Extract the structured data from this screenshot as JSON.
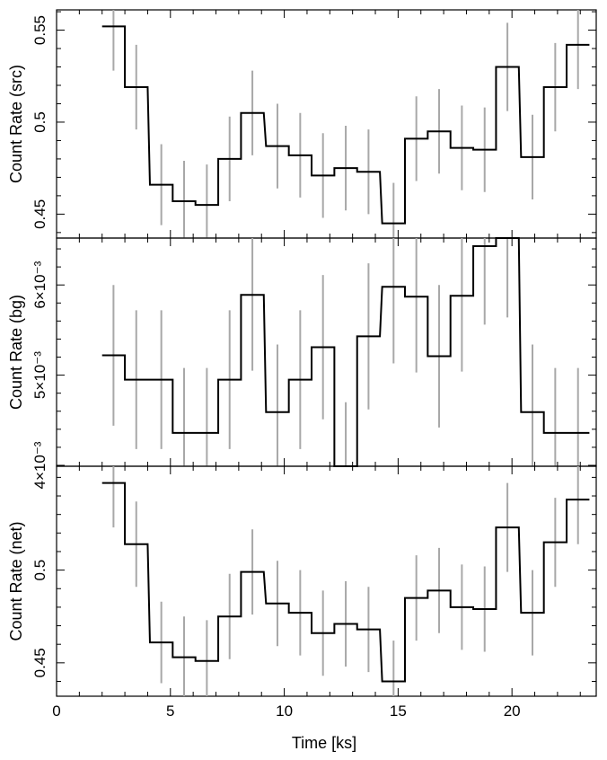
{
  "chart_data": [
    {
      "type": "line",
      "style": "step",
      "ylabel": "Count Rate (src)",
      "ylim": [
        0.437,
        0.561
      ],
      "xlim": [
        0,
        23.7
      ],
      "yticks": [
        0.45,
        0.5,
        0.55
      ],
      "ytick_labels": [
        "0.45",
        "0.5",
        "0.55"
      ],
      "x": [
        2.5,
        3.5,
        4.6,
        5.6,
        6.6,
        7.6,
        8.6,
        9.7,
        10.7,
        11.7,
        12.7,
        13.7,
        14.8,
        15.8,
        16.8,
        17.8,
        18.8,
        19.8,
        20.9,
        21.9,
        22.9
      ],
      "y": [
        0.552,
        0.519,
        0.466,
        0.457,
        0.455,
        0.48,
        0.505,
        0.487,
        0.482,
        0.471,
        0.475,
        0.473,
        0.445,
        0.491,
        0.495,
        0.486,
        0.485,
        0.53,
        0.481,
        0.519,
        0.542
      ],
      "err": [
        0.024,
        0.023,
        0.022,
        0.022,
        0.022,
        0.023,
        0.023,
        0.023,
        0.023,
        0.023,
        0.023,
        0.023,
        0.022,
        0.023,
        0.023,
        0.023,
        0.023,
        0.024,
        0.023,
        0.024,
        0.024
      ]
    },
    {
      "type": "line",
      "style": "step",
      "ylabel": "Count Rate (bg)",
      "ylim": [
        0.00399,
        0.00652
      ],
      "xlim": [
        0,
        23.7
      ],
      "yticks": [
        0.004,
        0.005,
        0.006
      ],
      "ytick_labels": [
        "4×10⁻³",
        "5×10⁻³",
        "6×10⁻³"
      ],
      "x": [
        2.5,
        3.5,
        4.6,
        5.6,
        6.6,
        7.6,
        8.6,
        9.7,
        10.7,
        11.7,
        12.7,
        13.7,
        14.8,
        15.8,
        16.8,
        17.8,
        18.8,
        19.8,
        20.9,
        21.9,
        22.9
      ],
      "y": [
        0.00522,
        0.00495,
        0.00495,
        0.00436,
        0.00436,
        0.00495,
        0.00589,
        0.00459,
        0.00495,
        0.00531,
        0.00399,
        0.00543,
        0.00598,
        0.00587,
        0.00521,
        0.00588,
        0.00643,
        0.00652,
        0.00459,
        0.00436,
        0.00436
      ],
      "err": [
        0.00078,
        0.00077,
        0.00077,
        0.00072,
        0.00072,
        0.00077,
        0.00084,
        0.00075,
        0.00077,
        0.0008,
        0.00071,
        0.00081,
        0.00085,
        0.00084,
        0.00079,
        0.00084,
        0.00087,
        0.00088,
        0.00075,
        0.00072,
        0.00072
      ]
    },
    {
      "type": "line",
      "style": "step",
      "ylabel": "Count Rate (net)",
      "xlabel": "Time [ks]",
      "ylim": [
        0.432,
        0.556
      ],
      "xlim": [
        0,
        23.7
      ],
      "yticks": [
        0.45,
        0.5
      ],
      "ytick_labels": [
        "0.45",
        "0.5"
      ],
      "xticks": [
        0,
        5,
        10,
        15,
        20
      ],
      "xtick_labels": [
        "0",
        "5",
        "10",
        "15",
        "20"
      ],
      "x": [
        2.5,
        3.5,
        4.6,
        5.6,
        6.6,
        7.6,
        8.6,
        9.7,
        10.7,
        11.7,
        12.7,
        13.7,
        14.8,
        15.8,
        16.8,
        17.8,
        18.8,
        19.8,
        20.9,
        21.9,
        22.9
      ],
      "y": [
        0.547,
        0.514,
        0.461,
        0.453,
        0.451,
        0.475,
        0.499,
        0.482,
        0.477,
        0.466,
        0.471,
        0.468,
        0.44,
        0.485,
        0.489,
        0.48,
        0.479,
        0.523,
        0.477,
        0.515,
        0.538
      ],
      "err": [
        0.024,
        0.023,
        0.022,
        0.022,
        0.022,
        0.023,
        0.023,
        0.023,
        0.023,
        0.023,
        0.023,
        0.023,
        0.022,
        0.023,
        0.023,
        0.023,
        0.023,
        0.024,
        0.023,
        0.024,
        0.024
      ]
    }
  ]
}
